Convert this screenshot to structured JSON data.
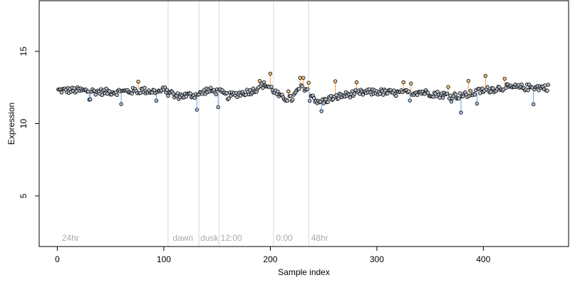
{
  "chart_data": {
    "type": "scatter",
    "title": "",
    "xlabel": "Sample index",
    "ylabel": "Expression",
    "xlim": [
      -17,
      480
    ],
    "ylim": [
      1.5,
      18.5
    ],
    "xticks": [
      "0",
      "100",
      "200",
      "300",
      "400"
    ],
    "xtick_values": [
      0,
      100,
      200,
      300,
      400
    ],
    "yticks": [
      "5",
      "10",
      "15"
    ],
    "ytick_values": [
      5,
      10,
      15
    ],
    "grid": false,
    "legend": "none",
    "colors": {
      "point_fill_default": "#b8c0cc",
      "point_fill_high": "#f5c27a",
      "point_fill_low": "#9ec3f0",
      "deviation_high": "#f0a040",
      "deviation_low": "#6a9fe0",
      "segment_line": "#d8d8d8",
      "segment_label": "#aaaaaa"
    },
    "segment_boundaries": [
      104,
      133,
      152,
      203,
      236
    ],
    "segment_labels": [
      {
        "x": 3,
        "text": "24hr"
      },
      {
        "x": 107,
        "text": "dawn"
      },
      {
        "x": 133,
        "text": "dusk"
      },
      {
        "x": 152,
        "text": "12:00"
      },
      {
        "x": 204,
        "text": "0:00"
      },
      {
        "x": 237,
        "text": "48hr"
      }
    ],
    "series": [
      {
        "x_start": 1,
        "x_end": 461,
        "anchors_x": [
          1,
          20,
          40,
          60,
          80,
          95,
          104,
          110,
          133,
          140,
          152,
          160,
          185,
          190,
          195,
          200,
          203,
          210,
          220,
          225,
          230,
          236,
          245,
          255,
          265,
          280,
          300,
          320,
          340,
          360,
          380,
          400,
          420,
          440,
          461
        ],
        "anchors_y": [
          12.3,
          12.3,
          12.2,
          12.2,
          12.3,
          12.2,
          12.4,
          11.9,
          12.0,
          12.3,
          12.2,
          11.9,
          12.3,
          12.6,
          12.7,
          12.5,
          12.3,
          11.8,
          11.7,
          12.2,
          12.6,
          12.3,
          11.4,
          11.7,
          11.9,
          12.1,
          12.2,
          12.1,
          12.2,
          12.0,
          11.9,
          12.3,
          12.5,
          12.5,
          12.5
        ]
      }
    ]
  }
}
